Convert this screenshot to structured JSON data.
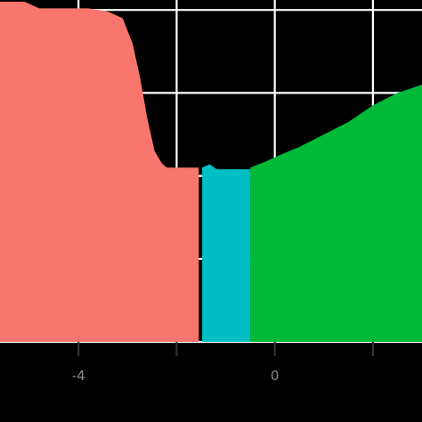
{
  "chart_data": {
    "type": "area",
    "title": "",
    "xlabel": "",
    "ylabel": "",
    "xlim": [
      -5.6,
      3.0
    ],
    "ylim": [
      0,
      0.412
    ],
    "grid": true,
    "legend": "none",
    "x_ticks": [
      {
        "value": -4,
        "label": "-4"
      },
      {
        "value": -2,
        "label": ""
      },
      {
        "value": 0,
        "label": "0"
      },
      {
        "value": 2,
        "label": ""
      }
    ],
    "y_gridlines": [
      0.1,
      0.2,
      0.3,
      0.4
    ],
    "series": [
      {
        "color": "#F8766D",
        "points": [
          [
            -5.6,
            0.41
          ],
          [
            -5.1,
            0.41
          ],
          [
            -4.8,
            0.402
          ],
          [
            -3.8,
            0.402
          ],
          [
            -3.4,
            0.398
          ],
          [
            -3.1,
            0.39
          ],
          [
            -2.9,
            0.36
          ],
          [
            -2.75,
            0.32
          ],
          [
            -2.6,
            0.27
          ],
          [
            -2.45,
            0.23
          ],
          [
            -2.3,
            0.215
          ],
          [
            -2.2,
            0.21
          ],
          [
            -1.55,
            0.21
          ]
        ]
      },
      {
        "color": "#00BFC4",
        "points": [
          [
            -1.48,
            0.21
          ],
          [
            -1.33,
            0.214
          ],
          [
            -1.18,
            0.208
          ],
          [
            -0.5,
            0.208
          ]
        ]
      },
      {
        "color": "#00BA38",
        "points": [
          [
            -0.5,
            0.21
          ],
          [
            -0.2,
            0.217
          ],
          [
            0.1,
            0.225
          ],
          [
            0.5,
            0.235
          ],
          [
            1.0,
            0.25
          ],
          [
            1.5,
            0.265
          ],
          [
            2.0,
            0.285
          ],
          [
            2.5,
            0.3
          ],
          [
            3.0,
            0.31
          ]
        ]
      }
    ]
  }
}
